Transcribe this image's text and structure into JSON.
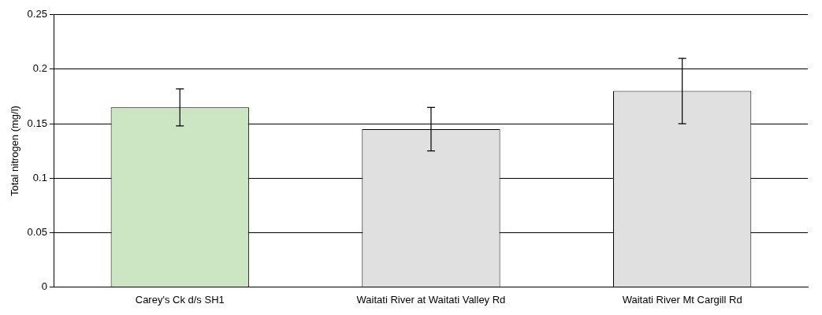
{
  "chart_data": {
    "type": "bar",
    "ylabel": "Total nitrogen (mg/l)",
    "categories": [
      "Carey's Ck d/s SH1",
      "Waitati River at Waitati Valley Rd",
      "Waitati River Mt Cargill Rd"
    ],
    "values": [
      0.165,
      0.145,
      0.18
    ],
    "colors": [
      "#cce6c4",
      "#e0e0e0",
      "#e0e0e0"
    ],
    "errors": [
      [
        0.148,
        0.182
      ],
      [
        0.125,
        0.165
      ],
      [
        0.15,
        0.21
      ]
    ],
    "ylim": [
      0,
      0.25
    ],
    "yticks": [
      0,
      0.05,
      0.1,
      0.15,
      0.2,
      0.25
    ],
    "grid": "y",
    "legend": false
  }
}
